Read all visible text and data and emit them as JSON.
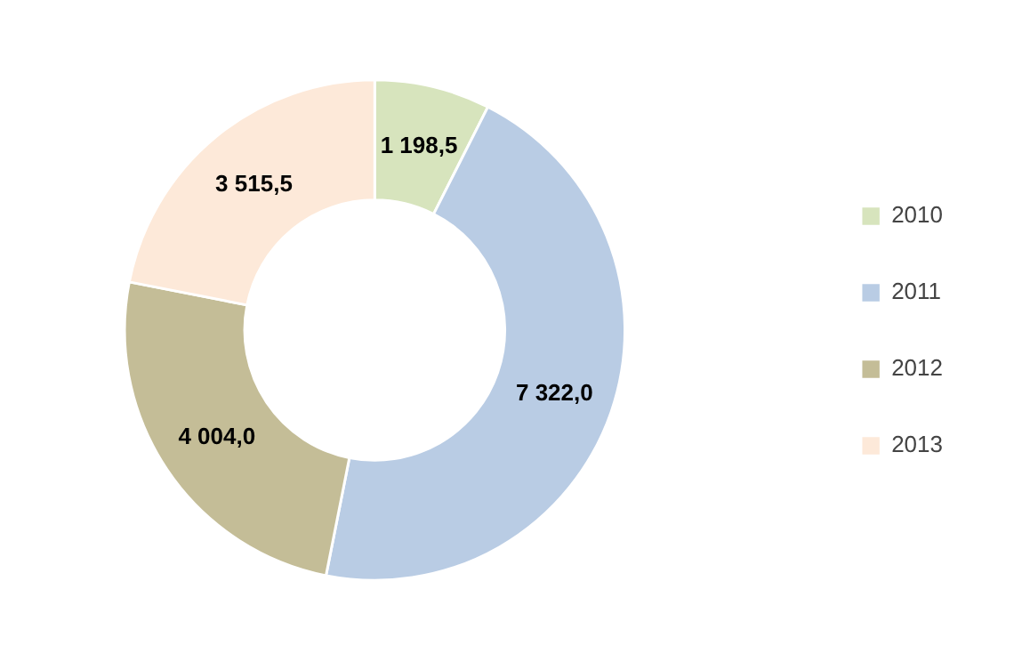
{
  "chart_data": {
    "type": "donut",
    "categories": [
      "2010",
      "2011",
      "2012",
      "2013"
    ],
    "values": [
      1198.5,
      7322.0,
      4004.0,
      3515.5
    ],
    "colors": [
      "#d7e4bd",
      "#b9cce4",
      "#c4bd97",
      "#fde9d9"
    ],
    "value_labels": [
      "1 198,5",
      "7 322,0",
      "4 004,0",
      "3 515,5"
    ],
    "legend": "right"
  }
}
